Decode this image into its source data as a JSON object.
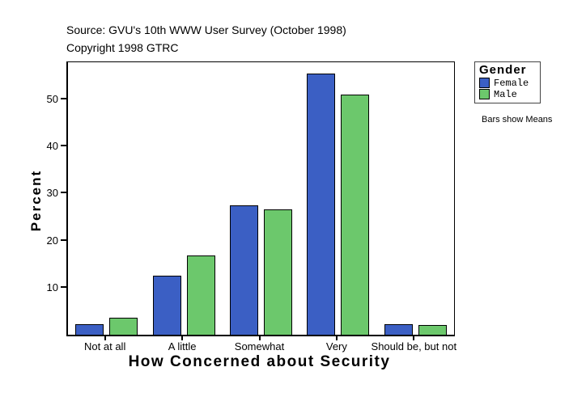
{
  "header": {
    "source_line": "Source: GVU's 10th WWW User Survey (October 1998)",
    "copyright_line": "Copyright 1998 GTRC"
  },
  "legend": {
    "title": "Gender",
    "items": [
      {
        "label": "Female",
        "color": "#3B5FC4"
      },
      {
        "label": "Male",
        "color": "#6CC86C"
      }
    ],
    "note": "Bars show Means"
  },
  "chart_data": {
    "type": "bar",
    "title": "How Concerned about Security",
    "xlabel": "How Concerned about Security",
    "ylabel": "Percent",
    "categories": [
      "Not at all",
      "A little",
      "Somewhat",
      "Very",
      "Should be, but not"
    ],
    "series": [
      {
        "name": "Female",
        "color": "#3B5FC4",
        "values": [
          2.2,
          12.5,
          27.5,
          55.5,
          2.3
        ]
      },
      {
        "name": "Male",
        "color": "#6CC86C",
        "values": [
          3.6,
          16.9,
          26.7,
          51.1,
          2.0
        ]
      }
    ],
    "yticks": [
      10,
      20,
      30,
      40,
      50
    ],
    "ylim": [
      0,
      57.9
    ],
    "grid": false,
    "legend_position": "right",
    "bar_outline_color": "#000000"
  }
}
